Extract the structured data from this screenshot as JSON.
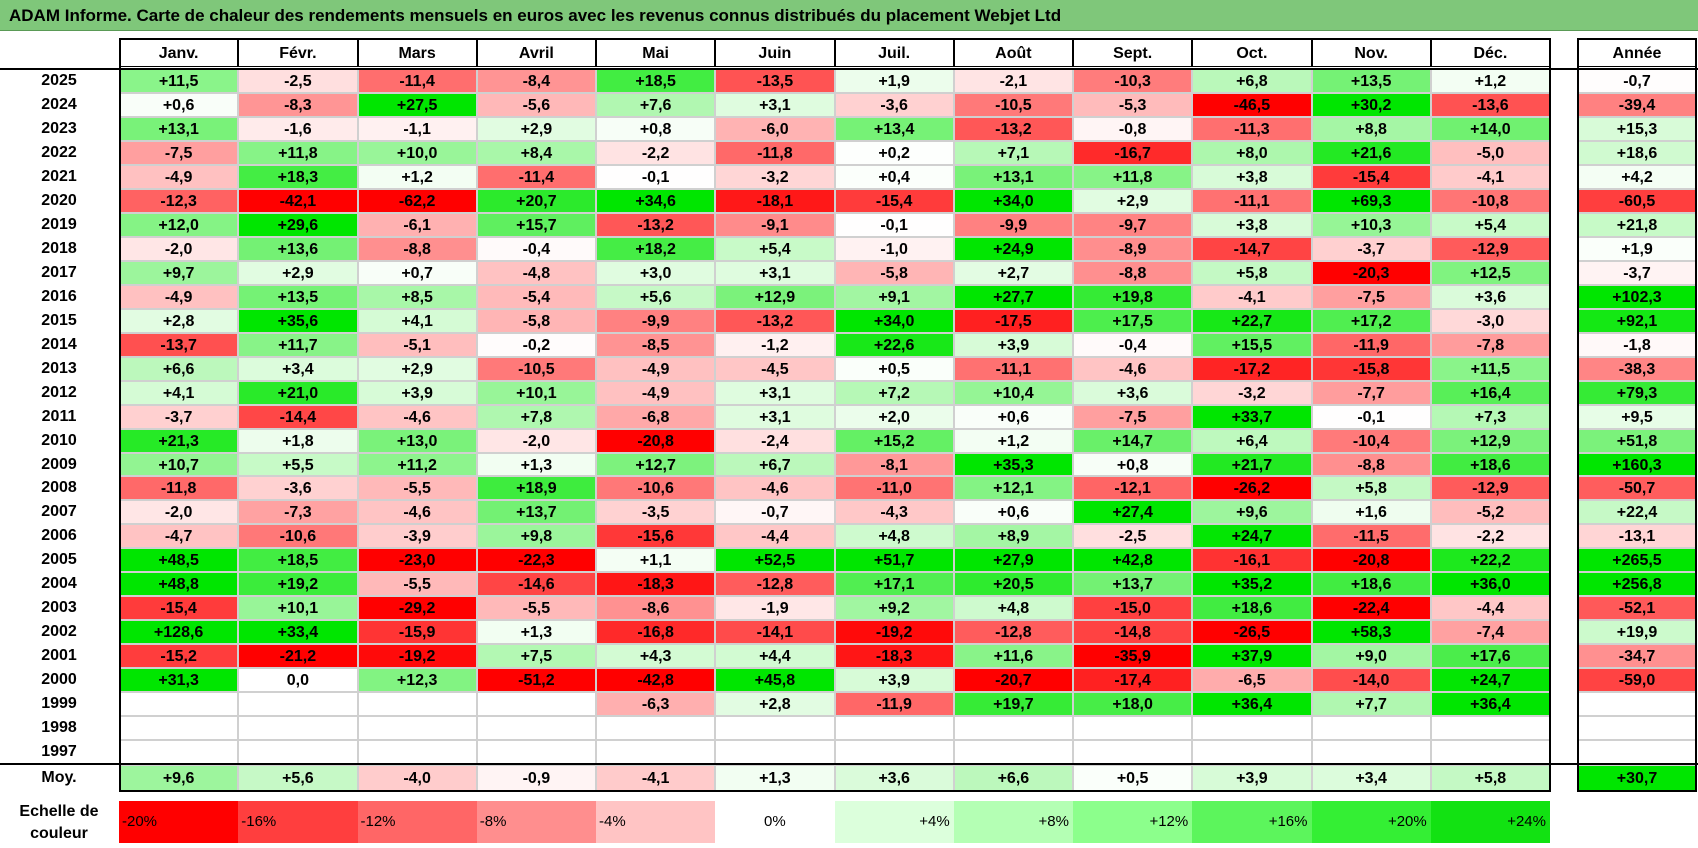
{
  "title": "ADAM Informe. Carte de chaleur des rendements mensuels en euros avec les revenus connus distribués du placement Webjet Ltd",
  "chart_data": {
    "type": "heatmap",
    "months": [
      "Janv.",
      "Févr.",
      "Mars",
      "Avril",
      "Mai",
      "Juin",
      "Juil.",
      "Août",
      "Sept.",
      "Oct.",
      "Nov.",
      "Déc."
    ],
    "year_header": "Année",
    "rows": [
      {
        "year": "2025",
        "m": [
          "+11,5",
          "-2,5",
          "-11,4",
          "-8,4",
          "+18,5",
          "-13,5",
          "+1,9",
          "-2,1",
          "-10,3",
          "+6,8",
          "+13,5",
          "+1,2"
        ],
        "y": "-0,7"
      },
      {
        "year": "2024",
        "m": [
          "+0,6",
          "-8,3",
          "+27,5",
          "-5,6",
          "+7,6",
          "+3,1",
          "-3,6",
          "-10,5",
          "-5,3",
          "-46,5",
          "+30,2",
          "-13,6"
        ],
        "y": "-39,4"
      },
      {
        "year": "2023",
        "m": [
          "+13,1",
          "-1,6",
          "-1,1",
          "+2,9",
          "+0,8",
          "-6,0",
          "+13,4",
          "-13,2",
          "-0,8",
          "-11,3",
          "+8,8",
          "+14,0"
        ],
        "y": "+15,3"
      },
      {
        "year": "2022",
        "m": [
          "-7,5",
          "+11,8",
          "+10,0",
          "+8,4",
          "-2,2",
          "-11,8",
          "+0,2",
          "+7,1",
          "-16,7",
          "+8,0",
          "+21,6",
          "-5,0"
        ],
        "y": "+18,6"
      },
      {
        "year": "2021",
        "m": [
          "-4,9",
          "+18,3",
          "+1,2",
          "-11,4",
          "-0,1",
          "-3,2",
          "+0,4",
          "+13,1",
          "+11,8",
          "+3,8",
          "-15,4",
          "-4,1"
        ],
        "y": "+4,2"
      },
      {
        "year": "2020",
        "m": [
          "-12,3",
          "-42,1",
          "-62,2",
          "+20,7",
          "+34,6",
          "-18,1",
          "-15,4",
          "+34,0",
          "+2,9",
          "-11,1",
          "+69,3",
          "-10,8"
        ],
        "y": "-60,5"
      },
      {
        "year": "2019",
        "m": [
          "+12,0",
          "+29,6",
          "-6,1",
          "+15,7",
          "-13,2",
          "-9,1",
          "-0,1",
          "-9,9",
          "-9,7",
          "+3,8",
          "+10,3",
          "+5,4"
        ],
        "y": "+21,8"
      },
      {
        "year": "2018",
        "m": [
          "-2,0",
          "+13,6",
          "-8,8",
          "-0,4",
          "+18,2",
          "+5,4",
          "-1,0",
          "+24,9",
          "-8,9",
          "-14,7",
          "-3,7",
          "-12,9"
        ],
        "y": "+1,9"
      },
      {
        "year": "2017",
        "m": [
          "+9,7",
          "+2,9",
          "+0,7",
          "-4,8",
          "+3,0",
          "+3,1",
          "-5,8",
          "+2,7",
          "-8,8",
          "+5,8",
          "-20,3",
          "+12,5"
        ],
        "y": "-3,7"
      },
      {
        "year": "2016",
        "m": [
          "-4,9",
          "+13,5",
          "+8,5",
          "-5,4",
          "+5,6",
          "+12,9",
          "+9,1",
          "+27,7",
          "+19,8",
          "-4,1",
          "-7,5",
          "+3,6"
        ],
        "y": "+102,3"
      },
      {
        "year": "2015",
        "m": [
          "+2,8",
          "+35,6",
          "+4,1",
          "-5,8",
          "-9,9",
          "-13,2",
          "+34,0",
          "-17,5",
          "+17,5",
          "+22,7",
          "+17,2",
          "-3,0"
        ],
        "y": "+92,1"
      },
      {
        "year": "2014",
        "m": [
          "-13,7",
          "+11,7",
          "-5,1",
          "-0,2",
          "-8,5",
          "-1,2",
          "+22,6",
          "+3,9",
          "-0,4",
          "+15,5",
          "-11,9",
          "-7,8"
        ],
        "y": "-1,8"
      },
      {
        "year": "2013",
        "m": [
          "+6,6",
          "+3,4",
          "+2,9",
          "-10,5",
          "-4,9",
          "-4,5",
          "+0,5",
          "-11,1",
          "-4,6",
          "-17,2",
          "-15,8",
          "+11,5"
        ],
        "y": "-38,3"
      },
      {
        "year": "2012",
        "m": [
          "+4,1",
          "+21,0",
          "+3,9",
          "+10,1",
          "-4,9",
          "+3,1",
          "+7,2",
          "+10,4",
          "+3,6",
          "-3,2",
          "-7,7",
          "+16,4"
        ],
        "y": "+79,3"
      },
      {
        "year": "2011",
        "m": [
          "-3,7",
          "-14,4",
          "-4,6",
          "+7,8",
          "-6,8",
          "+3,1",
          "+2,0",
          "+0,6",
          "-7,5",
          "+33,7",
          "-0,1",
          "+7,3"
        ],
        "y": "+9,5"
      },
      {
        "year": "2010",
        "m": [
          "+21,3",
          "+1,8",
          "+13,0",
          "-2,0",
          "-20,8",
          "-2,4",
          "+15,2",
          "+1,2",
          "+14,7",
          "+6,4",
          "-10,4",
          "+12,9"
        ],
        "y": "+51,8"
      },
      {
        "year": "2009",
        "m": [
          "+10,7",
          "+5,5",
          "+11,2",
          "+1,3",
          "+12,7",
          "+6,7",
          "-8,1",
          "+35,3",
          "+0,8",
          "+21,7",
          "-8,8",
          "+18,6"
        ],
        "y": "+160,3"
      },
      {
        "year": "2008",
        "m": [
          "-11,8",
          "-3,6",
          "-5,5",
          "+18,9",
          "-10,6",
          "-4,6",
          "-11,0",
          "+12,1",
          "-12,1",
          "-26,2",
          "+5,8",
          "-12,9"
        ],
        "y": "-50,7"
      },
      {
        "year": "2007",
        "m": [
          "-2,0",
          "-7,3",
          "-4,6",
          "+13,7",
          "-3,5",
          "-0,7",
          "-4,3",
          "+0,6",
          "+27,4",
          "+9,6",
          "+1,6",
          "-5,2"
        ],
        "y": "+22,4"
      },
      {
        "year": "2006",
        "m": [
          "-4,7",
          "-10,6",
          "-3,9",
          "+9,8",
          "-15,6",
          "-4,4",
          "+4,8",
          "+8,9",
          "-2,5",
          "+24,7",
          "-11,5",
          "-2,2"
        ],
        "y": "-13,1"
      },
      {
        "year": "2005",
        "m": [
          "+48,5",
          "+18,5",
          "-23,0",
          "-22,3",
          "+1,1",
          "+52,5",
          "+51,7",
          "+27,9",
          "+42,8",
          "-16,1",
          "-20,8",
          "+22,2"
        ],
        "y": "+265,5"
      },
      {
        "year": "2004",
        "m": [
          "+48,8",
          "+19,2",
          "-5,5",
          "-14,6",
          "-18,3",
          "-12,8",
          "+17,1",
          "+20,5",
          "+13,7",
          "+35,2",
          "+18,6",
          "+36,0"
        ],
        "y": "+256,8"
      },
      {
        "year": "2003",
        "m": [
          "-15,4",
          "+10,1",
          "-29,2",
          "-5,5",
          "-8,6",
          "-1,9",
          "+9,2",
          "+4,8",
          "-15,0",
          "+18,6",
          "-22,4",
          "-4,4"
        ],
        "y": "-52,1"
      },
      {
        "year": "2002",
        "m": [
          "+128,6",
          "+33,4",
          "-15,9",
          "+1,3",
          "-16,8",
          "-14,1",
          "-19,2",
          "-12,8",
          "-14,8",
          "-26,5",
          "+58,3",
          "-7,4"
        ],
        "y": "+19,9"
      },
      {
        "year": "2001",
        "m": [
          "-15,2",
          "-21,2",
          "-19,2",
          "+7,5",
          "+4,3",
          "+4,4",
          "-18,3",
          "+11,6",
          "-35,9",
          "+37,9",
          "+9,0",
          "+17,6"
        ],
        "y": "-34,7"
      },
      {
        "year": "2000",
        "m": [
          "+31,3",
          "0,0",
          "+12,3",
          "-51,2",
          "-42,8",
          "+45,8",
          "+3,9",
          "-20,7",
          "-17,4",
          "-6,5",
          "-14,0",
          "+24,7"
        ],
        "y": "-59,0"
      },
      {
        "year": "1999",
        "m": [
          "",
          "",
          "",
          "",
          "-6,3",
          "+2,8",
          "-11,9",
          "+19,7",
          "+18,0",
          "+36,4",
          "+7,7",
          "+36,4"
        ],
        "y": ""
      },
      {
        "year": "1998",
        "m": [
          "",
          "",
          "",
          "",
          "",
          "",
          "",
          "",
          "",
          "",
          "",
          ""
        ],
        "y": ""
      },
      {
        "year": "1997",
        "m": [
          "",
          "",
          "",
          "",
          "",
          "",
          "",
          "",
          "",
          "",
          "",
          ""
        ],
        "y": ""
      }
    ],
    "average": {
      "label": "Moy.",
      "m": [
        "+9,6",
        "+5,6",
        "-4,0",
        "-0,9",
        "-4,1",
        "+1,3",
        "+3,6",
        "+6,6",
        "+0,5",
        "+3,9",
        "+3,4",
        "+5,8"
      ],
      "y": "+30,7"
    },
    "scale": {
      "label": "Echelle de couleur",
      "steps": [
        "-20%",
        "-16%",
        "-12%",
        "-8%",
        "-4%",
        "0%",
        "+4%",
        "+8%",
        "+12%",
        "+16%",
        "+20%",
        "+24%"
      ],
      "colors": [
        "#ff0000",
        "#ff3e3e",
        "#ff6666",
        "#ff8e8e",
        "#ffc4c4",
        "#ffffff",
        "#dcffdc",
        "#b4ffb4",
        "#8cff8c",
        "#5cf55c",
        "#34ef34",
        "#12e212"
      ]
    }
  }
}
